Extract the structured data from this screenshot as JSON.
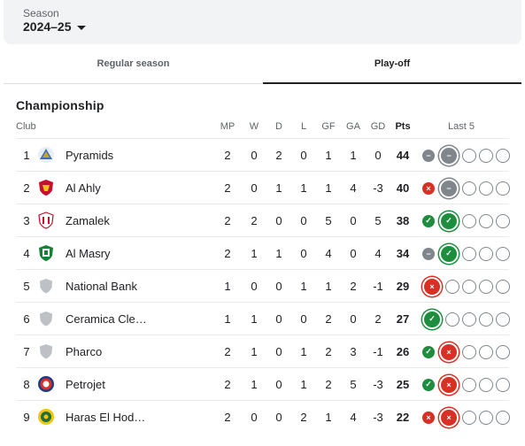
{
  "season": {
    "label": "Season",
    "value": "2024–25"
  },
  "tabs": [
    {
      "label": "Regular season",
      "selected": false
    },
    {
      "label": "Play-off",
      "selected": true
    }
  ],
  "group_title": "Championship",
  "headers": {
    "club": "Club",
    "mp": "MP",
    "w": "W",
    "d": "D",
    "l": "L",
    "gf": "GF",
    "ga": "GA",
    "gd": "GD",
    "pts": "Pts",
    "last5": "Last 5"
  },
  "teams": [
    {
      "pos": "1",
      "name": "Pyramids",
      "logo": "pyramids-logo",
      "mp": "2",
      "w": "0",
      "d": "2",
      "l": "0",
      "gf": "1",
      "ga": "1",
      "gd": "0",
      "pts": "44",
      "last5": [
        "draw",
        "draw"
      ]
    },
    {
      "pos": "2",
      "name": "Al Ahly",
      "logo": "al-ahly-logo",
      "mp": "2",
      "w": "0",
      "d": "1",
      "l": "1",
      "gf": "1",
      "ga": "4",
      "gd": "-3",
      "pts": "40",
      "last5": [
        "loss",
        "draw"
      ]
    },
    {
      "pos": "3",
      "name": "Zamalek",
      "logo": "zamalek-logo",
      "mp": "2",
      "w": "2",
      "d": "0",
      "l": "0",
      "gf": "5",
      "ga": "0",
      "gd": "5",
      "pts": "38",
      "last5": [
        "win",
        "win"
      ]
    },
    {
      "pos": "4",
      "name": "Al Masry",
      "logo": "al-masry-logo",
      "mp": "2",
      "w": "1",
      "d": "1",
      "l": "0",
      "gf": "4",
      "ga": "0",
      "gd": "4",
      "pts": "34",
      "last5": [
        "draw",
        "win"
      ]
    },
    {
      "pos": "5",
      "name": "National Bank",
      "logo": "generic-shield-logo",
      "mp": "1",
      "w": "0",
      "d": "0",
      "l": "1",
      "gf": "1",
      "ga": "2",
      "gd": "-1",
      "pts": "29",
      "last5": [
        "loss"
      ]
    },
    {
      "pos": "6",
      "name": "Ceramica Cle…",
      "logo": "generic-shield-logo",
      "mp": "1",
      "w": "1",
      "d": "0",
      "l": "0",
      "gf": "2",
      "ga": "0",
      "gd": "2",
      "pts": "27",
      "last5": [
        "win"
      ]
    },
    {
      "pos": "7",
      "name": "Pharco",
      "logo": "generic-shield-logo",
      "mp": "2",
      "w": "1",
      "d": "0",
      "l": "1",
      "gf": "2",
      "ga": "3",
      "gd": "-1",
      "pts": "26",
      "last5": [
        "win",
        "loss"
      ]
    },
    {
      "pos": "8",
      "name": "Petrojet",
      "logo": "petrojet-logo",
      "mp": "2",
      "w": "1",
      "d": "0",
      "l": "1",
      "gf": "2",
      "ga": "5",
      "gd": "-3",
      "pts": "25",
      "last5": [
        "win",
        "loss"
      ]
    },
    {
      "pos": "9",
      "name": "Haras El Hod…",
      "logo": "haras-el-hodood-logo",
      "mp": "2",
      "w": "0",
      "d": "0",
      "l": "2",
      "gf": "1",
      "ga": "4",
      "gd": "-3",
      "pts": "22",
      "last5": [
        "loss",
        "loss"
      ]
    }
  ],
  "colors": {
    "win": "#1e8e3e",
    "loss": "#d93025",
    "draw": "#80868b"
  }
}
